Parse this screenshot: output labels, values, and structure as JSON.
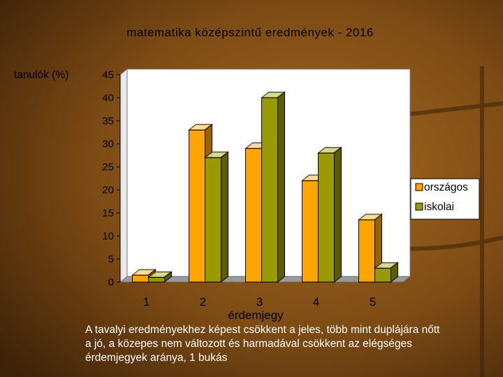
{
  "chart_data": {
    "type": "bar",
    "title": "matematika középszintű eredmények - 2016",
    "ylabel": "tanulók (%)",
    "xlabel": "érdemjegy",
    "categories": [
      "1",
      "2",
      "3",
      "4",
      "5"
    ],
    "series": [
      {
        "name": "országos",
        "values": [
          1.5,
          33,
          29,
          22,
          13.5
        ],
        "color": "#FFA500"
      },
      {
        "name": "iskolai",
        "values": [
          1,
          27,
          40,
          28,
          3
        ],
        "color": "#999900"
      }
    ],
    "ylim": [
      0,
      45
    ],
    "yticks": [
      "0",
      "5",
      "10",
      "15",
      "20",
      "25",
      "30",
      "35",
      "40",
      "45"
    ],
    "legend_position": "right",
    "grid": false
  },
  "caption": "A tavalyi eredményekhez képest  csökkent a jeles, több mint duplájára nőtt a jó, a közepes nem változott és harmadával csökkent az elégséges érdemjegyek aránya, 1 bukás",
  "colors": {
    "background": "#7a4a12",
    "plot_area": "#ffffff",
    "text": "#000000",
    "caption_text": "#ffffff"
  }
}
